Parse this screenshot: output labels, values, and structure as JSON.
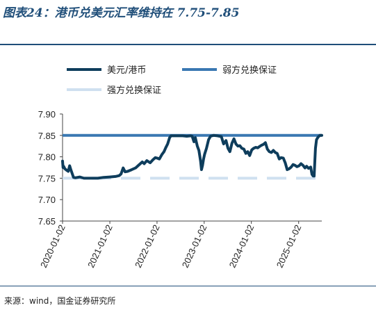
{
  "header": {
    "title": "图表24：港币兑美元汇率维持在 7.75-7.85"
  },
  "footer": {
    "source": "来源：wind，国金证券研究所"
  },
  "colors": {
    "accent": "#1f4e79",
    "series_main": "#0e3d5c",
    "series_weak": "#3a78b2",
    "series_strong": "#cfe0f0"
  },
  "chart_data": {
    "type": "line",
    "title": "",
    "xlabel": "",
    "ylabel": "",
    "ylim": [
      7.65,
      7.9
    ],
    "yticks": [
      "7.90",
      "7.85",
      "7.80",
      "7.75",
      "7.70",
      "7.65"
    ],
    "xlim": [
      "2020-01-02",
      "2025-06-30"
    ],
    "xticks": [
      "2020-01-02",
      "2021-01-02",
      "2022-01-02",
      "2023-01-02",
      "2024-01-02",
      "2025-01-02"
    ],
    "grid": false,
    "legend": "top",
    "series": [
      {
        "name": "美元/港币",
        "style": "solid-thick",
        "points": [
          [
            "2020-01-02",
            7.79
          ],
          [
            "2020-01-06",
            7.775
          ],
          [
            "2020-01-10",
            7.778
          ],
          [
            "2020-01-20",
            7.772
          ],
          [
            "2020-02-01",
            7.769
          ],
          [
            "2020-02-15",
            7.766
          ],
          [
            "2020-02-26",
            7.779
          ],
          [
            "2020-03-06",
            7.77
          ],
          [
            "2020-03-20",
            7.758
          ],
          [
            "2020-03-27",
            7.752
          ],
          [
            "2020-04-10",
            7.751
          ],
          [
            "2020-05-15",
            7.753
          ],
          [
            "2020-06-15",
            7.75
          ],
          [
            "2020-08-01",
            7.75
          ],
          [
            "2020-10-01",
            7.75
          ],
          [
            "2020-11-15",
            7.752
          ],
          [
            "2021-01-02",
            7.753
          ],
          [
            "2021-02-15",
            7.754
          ],
          [
            "2021-03-15",
            7.756
          ],
          [
            "2021-03-30",
            7.76
          ],
          [
            "2021-04-15",
            7.774
          ],
          [
            "2021-04-30",
            7.765
          ],
          [
            "2021-05-20",
            7.766
          ],
          [
            "2021-06-20",
            7.77
          ],
          [
            "2021-07-20",
            7.774
          ],
          [
            "2021-08-15",
            7.781
          ],
          [
            "2021-09-10",
            7.788
          ],
          [
            "2021-09-25",
            7.784
          ],
          [
            "2021-10-15",
            7.791
          ],
          [
            "2021-11-10",
            7.786
          ],
          [
            "2021-12-01",
            7.793
          ],
          [
            "2021-12-20",
            7.798
          ],
          [
            "2022-01-02",
            7.797
          ],
          [
            "2022-01-20",
            7.795
          ],
          [
            "2022-02-10",
            7.806
          ],
          [
            "2022-02-25",
            7.812
          ],
          [
            "2022-03-10",
            7.821
          ],
          [
            "2022-03-25",
            7.83
          ],
          [
            "2022-04-10",
            7.845
          ],
          [
            "2022-04-20",
            7.849
          ],
          [
            "2022-05-15",
            7.849
          ],
          [
            "2022-06-20",
            7.849
          ],
          [
            "2022-07-20",
            7.849
          ],
          [
            "2022-08-20",
            7.848
          ],
          [
            "2022-09-20",
            7.849
          ],
          [
            "2022-10-01",
            7.848
          ],
          [
            "2022-10-15",
            7.835
          ],
          [
            "2022-10-25",
            7.845
          ],
          [
            "2022-11-10",
            7.825
          ],
          [
            "2022-11-22",
            7.815
          ],
          [
            "2022-12-05",
            7.79
          ],
          [
            "2022-12-12",
            7.77
          ],
          [
            "2022-12-20",
            7.78
          ],
          [
            "2022-12-28",
            7.795
          ],
          [
            "2023-01-05",
            7.806
          ],
          [
            "2023-01-20",
            7.82
          ],
          [
            "2023-02-05",
            7.84
          ],
          [
            "2023-02-20",
            7.848
          ],
          [
            "2023-03-15",
            7.85
          ],
          [
            "2023-04-15",
            7.849
          ],
          [
            "2023-05-15",
            7.847
          ],
          [
            "2023-06-01",
            7.83
          ],
          [
            "2023-06-20",
            7.838
          ],
          [
            "2023-07-05",
            7.82
          ],
          [
            "2023-07-20",
            7.812
          ],
          [
            "2023-08-05",
            7.832
          ],
          [
            "2023-08-20",
            7.842
          ],
          [
            "2023-09-05",
            7.83
          ],
          [
            "2023-09-20",
            7.825
          ],
          [
            "2023-10-05",
            7.826
          ],
          [
            "2023-10-20",
            7.82
          ],
          [
            "2023-11-05",
            7.818
          ],
          [
            "2023-11-20",
            7.808
          ],
          [
            "2023-12-05",
            7.812
          ],
          [
            "2023-12-20",
            7.803
          ],
          [
            "2024-01-05",
            7.816
          ],
          [
            "2024-01-20",
            7.82
          ],
          [
            "2024-02-05",
            7.822
          ],
          [
            "2024-02-20",
            7.821
          ],
          [
            "2024-03-05",
            7.824
          ],
          [
            "2024-03-20",
            7.827
          ],
          [
            "2024-04-05",
            7.829
          ],
          [
            "2024-04-20",
            7.833
          ],
          [
            "2024-05-05",
            7.818
          ],
          [
            "2024-05-20",
            7.812
          ],
          [
            "2024-06-05",
            7.81
          ],
          [
            "2024-06-20",
            7.815
          ],
          [
            "2024-07-05",
            7.81
          ],
          [
            "2024-07-20",
            7.808
          ],
          [
            "2024-08-05",
            7.795
          ],
          [
            "2024-08-20",
            7.798
          ],
          [
            "2024-09-05",
            7.797
          ],
          [
            "2024-09-20",
            7.786
          ],
          [
            "2024-10-05",
            7.77
          ],
          [
            "2024-10-20",
            7.772
          ],
          [
            "2024-11-05",
            7.776
          ],
          [
            "2024-11-20",
            7.782
          ],
          [
            "2024-12-05",
            7.78
          ],
          [
            "2024-12-20",
            7.777
          ],
          [
            "2025-01-05",
            7.779
          ],
          [
            "2025-01-20",
            7.784
          ],
          [
            "2025-02-05",
            7.78
          ],
          [
            "2025-02-20",
            7.774
          ],
          [
            "2025-03-05",
            7.778
          ],
          [
            "2025-03-20",
            7.773
          ],
          [
            "2025-04-05",
            7.776
          ],
          [
            "2025-04-15",
            7.759
          ],
          [
            "2025-04-25",
            7.755
          ],
          [
            "2025-05-02",
            7.755
          ],
          [
            "2025-05-07",
            7.79
          ],
          [
            "2025-05-12",
            7.82
          ],
          [
            "2025-05-20",
            7.84
          ],
          [
            "2025-06-01",
            7.846
          ],
          [
            "2025-06-15",
            7.85
          ],
          [
            "2025-06-30",
            7.85
          ]
        ]
      },
      {
        "name": "弱方兑换保证",
        "style": "solid",
        "constant": 7.85
      },
      {
        "name": "强方兑换保证",
        "style": "dashed",
        "constant": 7.75
      }
    ]
  }
}
